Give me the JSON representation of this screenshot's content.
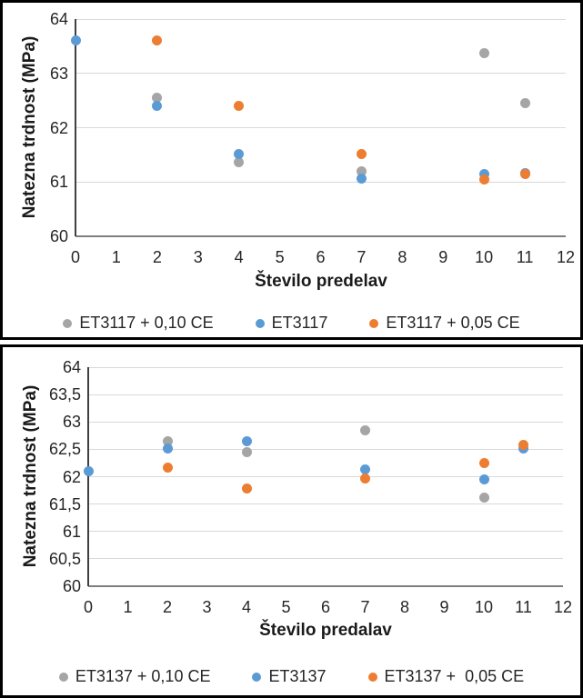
{
  "colors": {
    "gray": "#a5a5a5",
    "blue": "#5b9bd5",
    "orange": "#ed7d31",
    "gridline": "#d9d9d9",
    "axis_line": "#404040",
    "x_axis_line": "#7f7f7f",
    "text": "#262626",
    "panel_border": "#000000"
  },
  "chart_data": [
    {
      "type": "scatter",
      "ylabel": "Natezna trdnost (MPa)",
      "xlabel": "Število predelav",
      "xlim": [
        0,
        12
      ],
      "ylim": [
        60,
        64
      ],
      "grid": true,
      "legend_position": "bottom",
      "yticks": [
        {
          "v": 64,
          "label": "64"
        },
        {
          "v": 63,
          "label": "63"
        },
        {
          "v": 62,
          "label": "62"
        },
        {
          "v": 61,
          "label": "61"
        },
        {
          "v": 60,
          "label": "60"
        }
      ],
      "xticks": [
        {
          "v": 0,
          "label": "0"
        },
        {
          "v": 1,
          "label": "1"
        },
        {
          "v": 2,
          "label": "2"
        },
        {
          "v": 3,
          "label": "3"
        },
        {
          "v": 4,
          "label": "4"
        },
        {
          "v": 5,
          "label": "5"
        },
        {
          "v": 6,
          "label": "6"
        },
        {
          "v": 7,
          "label": "7"
        },
        {
          "v": 8,
          "label": "8"
        },
        {
          "v": 9,
          "label": "9"
        },
        {
          "v": 10,
          "label": "10"
        },
        {
          "v": 11,
          "label": "11"
        },
        {
          "v": 12,
          "label": "12"
        }
      ],
      "series": [
        {
          "name": "ET3117 + 0,10 CE",
          "color": "gray",
          "points": [
            [
              2,
              62.55
            ],
            [
              4,
              61.37
            ],
            [
              7,
              61.2
            ],
            [
              10,
              63.37
            ],
            [
              11,
              62.45
            ]
          ]
        },
        {
          "name": "ET3117",
          "color": "blue",
          "points": [
            [
              0,
              63.6
            ],
            [
              2,
              62.4
            ],
            [
              4,
              61.52
            ],
            [
              7,
              61.06
            ],
            [
              10,
              61.15
            ],
            [
              11,
              61.17
            ]
          ]
        },
        {
          "name": "ET3117 + 0,05 CE",
          "color": "orange",
          "points": [
            [
              2,
              63.6
            ],
            [
              4,
              62.4
            ],
            [
              7,
              61.52
            ],
            [
              10,
              61.05
            ],
            [
              11,
              61.15
            ]
          ]
        }
      ]
    },
    {
      "type": "scatter",
      "ylabel": "Natezna trdnost (MPa)",
      "xlabel": "Število predalav",
      "xlim": [
        0,
        12
      ],
      "ylim": [
        60,
        64
      ],
      "grid": true,
      "legend_position": "bottom",
      "yticks": [
        {
          "v": 64,
          "label": "64"
        },
        {
          "v": 63.5,
          "label": "63,5"
        },
        {
          "v": 63,
          "label": "63"
        },
        {
          "v": 62.5,
          "label": "62,5"
        },
        {
          "v": 62,
          "label": "62"
        },
        {
          "v": 61.5,
          "label": "61,5"
        },
        {
          "v": 61,
          "label": "61"
        },
        {
          "v": 60.5,
          "label": "60,5"
        },
        {
          "v": 60,
          "label": "60"
        }
      ],
      "xticks": [
        {
          "v": 0,
          "label": "0"
        },
        {
          "v": 1,
          "label": "1"
        },
        {
          "v": 2,
          "label": "2"
        },
        {
          "v": 3,
          "label": "3"
        },
        {
          "v": 4,
          "label": "4"
        },
        {
          "v": 5,
          "label": "5"
        },
        {
          "v": 6,
          "label": "6"
        },
        {
          "v": 7,
          "label": "7"
        },
        {
          "v": 8,
          "label": "8"
        },
        {
          "v": 9,
          "label": "9"
        },
        {
          "v": 10,
          "label": "10"
        },
        {
          "v": 11,
          "label": "11"
        },
        {
          "v": 12,
          "label": "12"
        }
      ],
      "series": [
        {
          "name": "ET3137 + 0,10 CE",
          "color": "gray",
          "points": [
            [
              2,
              62.65
            ],
            [
              4,
              62.45
            ],
            [
              7,
              62.85
            ],
            [
              10,
              61.61
            ]
          ]
        },
        {
          "name": "ET3137",
          "color": "blue",
          "points": [
            [
              0,
              62.1
            ],
            [
              2,
              62.52
            ],
            [
              4,
              62.65
            ],
            [
              7,
              62.13
            ],
            [
              10,
              61.95
            ],
            [
              11,
              62.51
            ]
          ]
        },
        {
          "name": "ET3137 +  0,05 CE",
          "color": "orange",
          "points": [
            [
              2,
              62.16
            ],
            [
              4,
              61.78
            ],
            [
              7,
              61.97
            ],
            [
              10,
              62.25
            ],
            [
              11,
              62.58
            ]
          ]
        }
      ]
    }
  ]
}
